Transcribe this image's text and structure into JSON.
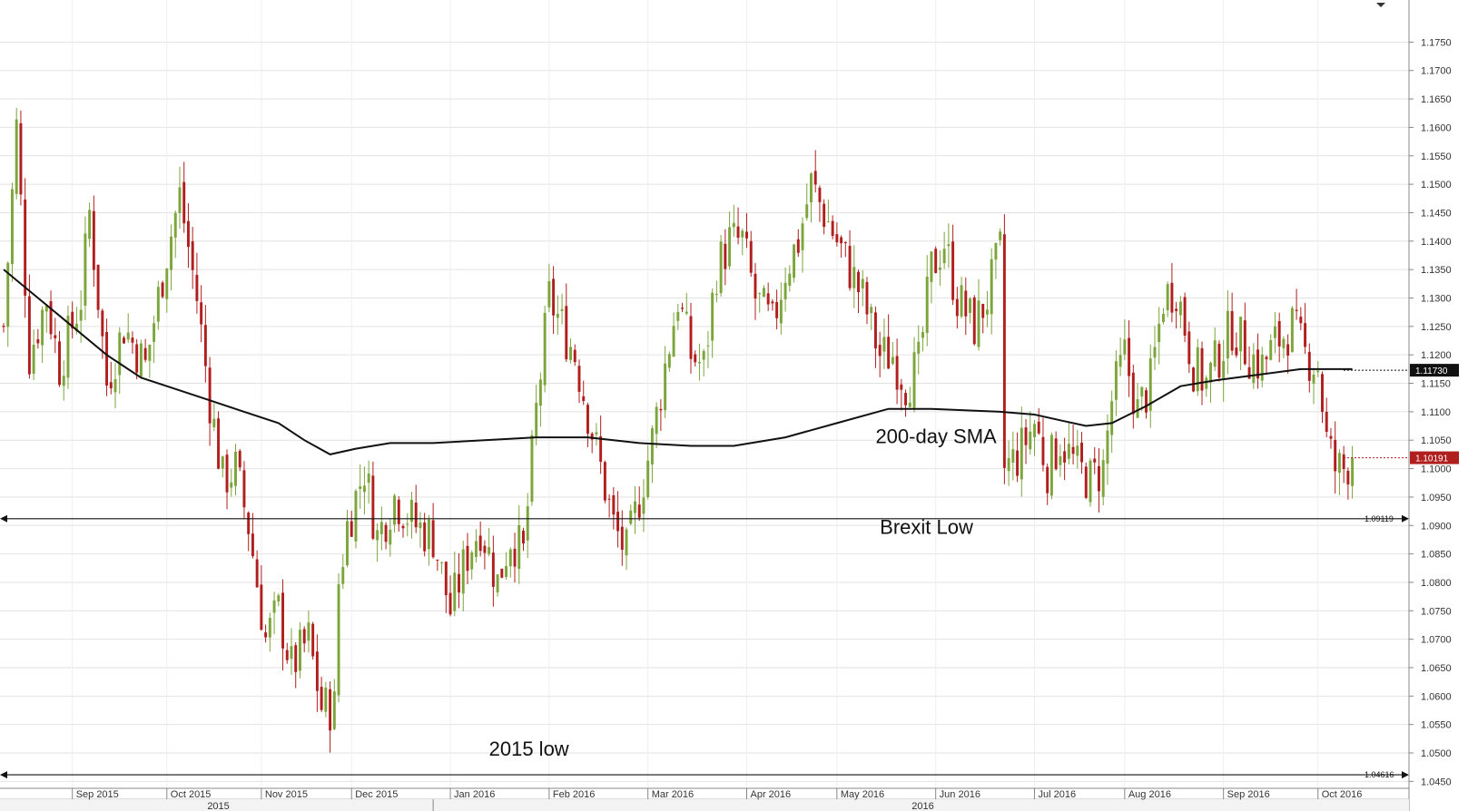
{
  "chart_data": {
    "type": "candlestick",
    "title": "",
    "y_axis": {
      "position": "right",
      "min": 1.045,
      "max": 1.18,
      "ticks": [
        "1.1750",
        "1.1700",
        "1.1650",
        "1.1600",
        "1.1550",
        "1.1500",
        "1.1450",
        "1.1400",
        "1.1350",
        "1.1300",
        "1.1250",
        "1.1200",
        "1.1150",
        "1.1100",
        "1.1050",
        "1.1000",
        "1.0950",
        "1.0900",
        "1.0850",
        "1.0800",
        "1.0750",
        "1.0700",
        "1.0650",
        "1.0600",
        "1.0550",
        "1.0500",
        "1.0450"
      ]
    },
    "x_axis": {
      "months": [
        {
          "label": "Sep 2015",
          "day": 16
        },
        {
          "label": "Oct 2015",
          "day": 38
        },
        {
          "label": "Nov 2015",
          "day": 60
        },
        {
          "label": "Dec 2015",
          "day": 81
        },
        {
          "label": "Jan 2016",
          "day": 104
        },
        {
          "label": "Feb 2016",
          "day": 127
        },
        {
          "label": "Mar 2016",
          "day": 150
        },
        {
          "label": "Apr 2016",
          "day": 173
        },
        {
          "label": "May 2016",
          "day": 194
        },
        {
          "label": "Jun 2016",
          "day": 217
        },
        {
          "label": "Jul 2016",
          "day": 240
        },
        {
          "label": "Aug 2016",
          "day": 261
        },
        {
          "label": "Sep 2016",
          "day": 284
        },
        {
          "label": "Oct 2016",
          "day": 306
        }
      ],
      "years": [
        {
          "label": "2015",
          "day": 50
        },
        {
          "label": "2016",
          "day": 214
        }
      ],
      "year_boundary_day": 100,
      "total_days": 320
    },
    "close_path": [
      [
        0,
        1.125
      ],
      [
        3,
        1.16
      ],
      [
        6,
        1.12
      ],
      [
        10,
        1.13
      ],
      [
        13,
        1.118
      ],
      [
        18,
        1.13
      ],
      [
        20,
        1.145
      ],
      [
        24,
        1.115
      ],
      [
        28,
        1.125
      ],
      [
        33,
        1.118
      ],
      [
        38,
        1.138
      ],
      [
        41,
        1.148
      ],
      [
        45,
        1.13
      ],
      [
        48,
        1.112
      ],
      [
        51,
        1.098
      ],
      [
        54,
        1.1
      ],
      [
        57,
        1.09
      ],
      [
        61,
        1.07
      ],
      [
        64,
        1.075
      ],
      [
        67,
        1.065
      ],
      [
        71,
        1.07
      ],
      [
        74,
        1.058
      ],
      [
        77,
        1.058
      ],
      [
        78,
        1.08
      ],
      [
        80,
        1.09
      ],
      [
        84,
        1.1
      ],
      [
        87,
        1.088
      ],
      [
        91,
        1.095
      ],
      [
        96,
        1.09
      ],
      [
        100,
        1.088
      ],
      [
        104,
        1.075
      ],
      [
        108,
        1.085
      ],
      [
        111,
        1.09
      ],
      [
        115,
        1.08
      ],
      [
        118,
        1.088
      ],
      [
        121,
        1.085
      ],
      [
        124,
        1.11
      ],
      [
        127,
        1.13
      ],
      [
        130,
        1.125
      ],
      [
        133,
        1.12
      ],
      [
        136,
        1.11
      ],
      [
        139,
        1.1
      ],
      [
        142,
        1.09
      ],
      [
        145,
        1.085
      ],
      [
        148,
        1.095
      ],
      [
        151,
        1.105
      ],
      [
        154,
        1.118
      ],
      [
        157,
        1.13
      ],
      [
        160,
        1.12
      ],
      [
        163,
        1.118
      ],
      [
        166,
        1.135
      ],
      [
        169,
        1.14
      ],
      [
        172,
        1.14
      ],
      [
        175,
        1.13
      ],
      [
        179,
        1.125
      ],
      [
        182,
        1.135
      ],
      [
        185,
        1.14
      ],
      [
        188,
        1.15
      ],
      [
        191,
        1.145
      ],
      [
        194,
        1.14
      ],
      [
        197,
        1.135
      ],
      [
        200,
        1.13
      ],
      [
        204,
        1.12
      ],
      [
        207,
        1.12
      ],
      [
        210,
        1.115
      ],
      [
        213,
        1.118
      ],
      [
        216,
        1.135
      ],
      [
        219,
        1.14
      ],
      [
        222,
        1.13
      ],
      [
        226,
        1.125
      ],
      [
        229,
        1.13
      ],
      [
        232,
        1.138
      ],
      [
        233,
        1.1
      ],
      [
        236,
        1.102
      ],
      [
        240,
        1.108
      ],
      [
        243,
        1.1
      ],
      [
        246,
        1.105
      ],
      [
        250,
        1.1
      ],
      [
        253,
        1.098
      ],
      [
        256,
        1.1
      ],
      [
        258,
        1.112
      ],
      [
        261,
        1.12
      ],
      [
        264,
        1.11
      ],
      [
        267,
        1.115
      ],
      [
        270,
        1.13
      ],
      [
        273,
        1.132
      ],
      [
        277,
        1.118
      ],
      [
        280,
        1.115
      ],
      [
        283,
        1.12
      ],
      [
        286,
        1.125
      ],
      [
        290,
        1.12
      ],
      [
        293,
        1.118
      ],
      [
        296,
        1.122
      ],
      [
        300,
        1.125
      ],
      [
        303,
        1.12
      ],
      [
        306,
        1.118
      ],
      [
        308,
        1.105
      ],
      [
        310,
        1.1
      ],
      [
        312,
        1.1
      ],
      [
        314,
        1.1019
      ]
    ],
    "series": [
      {
        "type": "sma",
        "label": "200-day SMA",
        "values": [
          [
            0,
            1.135
          ],
          [
            8,
            1.13
          ],
          [
            16,
            1.125
          ],
          [
            24,
            1.12
          ],
          [
            32,
            1.116
          ],
          [
            40,
            1.114
          ],
          [
            48,
            1.112
          ],
          [
            56,
            1.11
          ],
          [
            64,
            1.108
          ],
          [
            70,
            1.105
          ],
          [
            76,
            1.1025
          ],
          [
            82,
            1.1035
          ],
          [
            90,
            1.1045
          ],
          [
            100,
            1.1045
          ],
          [
            112,
            1.105
          ],
          [
            124,
            1.1055
          ],
          [
            136,
            1.1055
          ],
          [
            148,
            1.1045
          ],
          [
            160,
            1.104
          ],
          [
            170,
            1.104
          ],
          [
            182,
            1.1055
          ],
          [
            194,
            1.108
          ],
          [
            206,
            1.1105
          ],
          [
            216,
            1.1105
          ],
          [
            232,
            1.11
          ],
          [
            240,
            1.1095
          ],
          [
            246,
            1.1085
          ],
          [
            252,
            1.1075
          ],
          [
            258,
            1.108
          ],
          [
            266,
            1.111
          ],
          [
            274,
            1.1145
          ],
          [
            282,
            1.1155
          ],
          [
            292,
            1.1165
          ],
          [
            302,
            1.1175
          ],
          [
            314,
            1.1175
          ]
        ]
      }
    ],
    "levels": [
      {
        "price": 1.09119,
        "label": "1.09119",
        "annotation": "Brexit Low"
      },
      {
        "price": 1.04616,
        "label": "1.04616",
        "annotation": "2015 low"
      }
    ],
    "price_tags": [
      {
        "price": 1.1173,
        "label": "1.11730",
        "color": "#111111"
      },
      {
        "price": 1.10191,
        "label": "1.10191",
        "color": "#b01e1e"
      }
    ],
    "annotations": [
      {
        "text": "200-day SMA",
        "day": 203,
        "price": 1.1045
      },
      {
        "text": "Brexit Low",
        "day": 204,
        "price": 1.0885
      },
      {
        "text": "2015 low",
        "day": 113,
        "price": 1.0495
      }
    ],
    "colors": {
      "up": "#7ca53c",
      "down": "#b01e1e",
      "sma": "#111111",
      "grid": "#e2e2e2",
      "axis": "#888888"
    },
    "grid": true
  }
}
